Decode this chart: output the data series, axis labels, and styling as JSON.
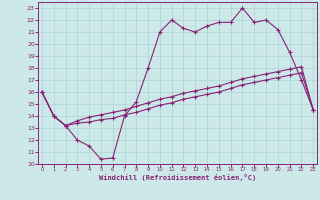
{
  "bg_color": "#cce8e8",
  "line_color": "#882277",
  "grid_color": "#aad4d4",
  "xlabel": "Windchill (Refroidissement éolien,°C)",
  "x_ticks": [
    0,
    1,
    2,
    3,
    4,
    5,
    6,
    7,
    8,
    9,
    10,
    11,
    12,
    13,
    14,
    15,
    16,
    17,
    18,
    19,
    20,
    21,
    22,
    23
  ],
  "y_ticks": [
    10,
    11,
    12,
    13,
    14,
    15,
    16,
    17,
    18,
    19,
    20,
    21,
    22,
    23
  ],
  "ylim": [
    10.0,
    23.5
  ],
  "xlim": [
    -0.3,
    23.3
  ],
  "line1_x": [
    0,
    1,
    2,
    3,
    4,
    5,
    6,
    7,
    8,
    9,
    10,
    11,
    12,
    13,
    14,
    15,
    16,
    17,
    18,
    19,
    20,
    21,
    22,
    23
  ],
  "line1_y": [
    16.0,
    14.0,
    13.2,
    12.0,
    11.5,
    10.4,
    10.5,
    14.0,
    15.2,
    18.0,
    21.0,
    22.0,
    21.3,
    21.0,
    21.5,
    21.8,
    21.8,
    23.0,
    21.8,
    22.0,
    21.2,
    19.3,
    17.0,
    14.5
  ],
  "line2_x": [
    0,
    1,
    2,
    3,
    4,
    5,
    6,
    7,
    8,
    9,
    10,
    11,
    12,
    13,
    14,
    15,
    16,
    17,
    18,
    19,
    20,
    21,
    22,
    23
  ],
  "line2_y": [
    16.0,
    14.0,
    13.2,
    13.4,
    13.5,
    13.7,
    13.8,
    14.1,
    14.3,
    14.6,
    14.9,
    15.1,
    15.4,
    15.6,
    15.8,
    16.0,
    16.3,
    16.6,
    16.8,
    17.0,
    17.2,
    17.4,
    17.6,
    14.5
  ],
  "line3_x": [
    0,
    1,
    2,
    3,
    4,
    5,
    6,
    7,
    8,
    9,
    10,
    11,
    12,
    13,
    14,
    15,
    16,
    17,
    18,
    19,
    20,
    21,
    22,
    23
  ],
  "line3_y": [
    16.0,
    14.0,
    13.2,
    13.6,
    13.9,
    14.1,
    14.3,
    14.5,
    14.8,
    15.1,
    15.4,
    15.6,
    15.9,
    16.1,
    16.3,
    16.5,
    16.8,
    17.1,
    17.3,
    17.5,
    17.7,
    17.9,
    18.1,
    14.5
  ]
}
